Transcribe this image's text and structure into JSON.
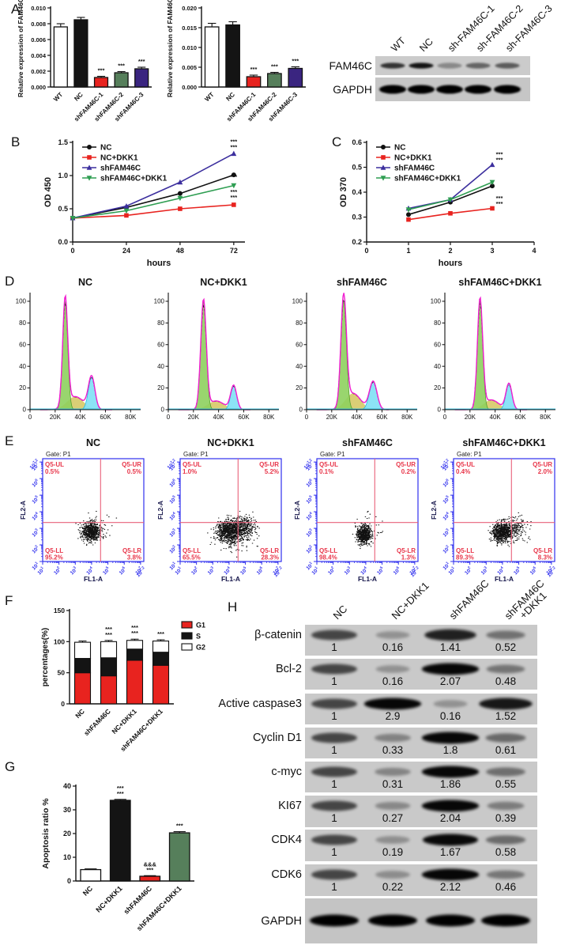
{
  "panel_labels": {
    "A": "A",
    "B": "B",
    "C": "C",
    "D": "D",
    "E": "E",
    "F": "F",
    "G": "G",
    "H": "H"
  },
  "colors": {
    "bar_white": "#ffffff",
    "bar_black": "#141414",
    "bar_red": "#e8231f",
    "bar_green": "#567f5b",
    "bar_purple": "#3a2580",
    "line_black": "#111111",
    "line_red": "#e8231f",
    "line_blue": "#3c2f9e",
    "line_green": "#2f9e52",
    "hist_green": "#8ed05e",
    "hist_yellow": "#d9cb6f",
    "hist_cyan": "#86e2f6",
    "hist_magenta": "#f01fd0",
    "scatter_frame": "#3030ee",
    "scatter_text": "#e8364a",
    "scatter_cross": "#e8607a"
  },
  "chart_data": [
    {
      "id": "A1",
      "type": "bar",
      "ylabel": "Relative expression of FAM46C",
      "categories": [
        "WT",
        "NC",
        "shFAM46C-1",
        "shFAM46C-2",
        "shFAM46C-3"
      ],
      "values": [
        0.0076,
        0.0085,
        0.0012,
        0.0018,
        0.0023
      ],
      "errors": [
        0.0004,
        0.0003,
        0.00015,
        0.00015,
        0.0002
      ],
      "bar_colors": [
        "#ffffff",
        "#141414",
        "#e8231f",
        "#567f5b",
        "#3a2580"
      ],
      "annotations": [
        null,
        null,
        [
          "***"
        ],
        [
          "***"
        ],
        [
          "***"
        ]
      ],
      "ylim": [
        0,
        0.01
      ],
      "ytick_step": 0.002,
      "ytick_decimals": 3
    },
    {
      "id": "A2",
      "type": "bar",
      "ylabel": "Relative expression of FAM46C",
      "categories": [
        "WT",
        "NC",
        "shFAM46C-1",
        "shFAM46C-2",
        "shFAM46C-3"
      ],
      "values": [
        0.0152,
        0.0157,
        0.0026,
        0.0034,
        0.0047
      ],
      "errors": [
        0.0009,
        0.0008,
        0.0004,
        0.0003,
        0.0004
      ],
      "bar_colors": [
        "#ffffff",
        "#141414",
        "#e8231f",
        "#567f5b",
        "#3a2580"
      ],
      "annotations": [
        null,
        null,
        [
          "***"
        ],
        [
          "***"
        ],
        [
          "***"
        ]
      ],
      "ylim": [
        0,
        0.02
      ],
      "ytick_step": 0.005,
      "ytick_decimals": 3
    },
    {
      "id": "B",
      "type": "line",
      "ylabel": "OD 450",
      "xlabel": "hours",
      "x": [
        0,
        24,
        48,
        72
      ],
      "xlim": [
        0,
        77
      ],
      "xticks": [
        0,
        24,
        48,
        72
      ],
      "ylim": [
        0,
        1.5
      ],
      "yticks": [
        0,
        0.5,
        1.0,
        1.5
      ],
      "ytick_decimals": 1,
      "series": [
        {
          "name": "NC",
          "color": "#111111",
          "marker": "circle",
          "values": [
            0.36,
            0.52,
            0.73,
            1.01
          ]
        },
        {
          "name": "NC+DKK1",
          "color": "#e8231f",
          "marker": "square",
          "values": [
            0.36,
            0.4,
            0.5,
            0.56
          ]
        },
        {
          "name": "shFAM46C",
          "color": "#3c2f9e",
          "marker": "triangle-up",
          "values": [
            0.36,
            0.54,
            0.9,
            1.33
          ]
        },
        {
          "name": "shFAM46C+DKK1",
          "color": "#2f9e52",
          "marker": "triangle-down",
          "values": [
            0.36,
            0.47,
            0.66,
            0.85
          ]
        }
      ],
      "annotations": [
        {
          "x": 72,
          "y": 1.48,
          "lines": [
            "***",
            "***"
          ]
        },
        {
          "x": 72,
          "y": 0.955,
          "lines": [
            "***"
          ]
        },
        {
          "x": 72,
          "y": 0.725,
          "lines": [
            "***",
            "***"
          ]
        }
      ]
    },
    {
      "id": "C",
      "type": "line",
      "ylabel": "OD 370",
      "xlabel": "hours",
      "x": [
        1,
        2,
        3
      ],
      "xlim": [
        0,
        4
      ],
      "xticks": [
        0,
        1,
        2,
        3,
        4
      ],
      "ylim": [
        0.2,
        0.6
      ],
      "yticks": [
        0.2,
        0.3,
        0.4,
        0.5,
        0.6
      ],
      "ytick_decimals": 1,
      "series": [
        {
          "name": "NC",
          "color": "#111111",
          "marker": "circle",
          "values": [
            0.31,
            0.36,
            0.425
          ]
        },
        {
          "name": "NC+DKK1",
          "color": "#e8231f",
          "marker": "square",
          "values": [
            0.29,
            0.315,
            0.335
          ]
        },
        {
          "name": "shFAM46C",
          "color": "#3c2f9e",
          "marker": "triangle-up",
          "values": [
            0.335,
            0.37,
            0.51
          ]
        },
        {
          "name": "shFAM46C+DKK1",
          "color": "#2f9e52",
          "marker": "triangle-down",
          "values": [
            0.33,
            0.37,
            0.44
          ]
        }
      ],
      "annotations": [
        {
          "x": 3.17,
          "y": 0.545,
          "lines": [
            "***",
            "***"
          ]
        },
        {
          "x": 3.17,
          "y": 0.368,
          "lines": [
            "***",
            "***"
          ]
        }
      ]
    },
    {
      "id": "D1",
      "type": "area",
      "title": "NC",
      "xticks": [
        0,
        20,
        40,
        60,
        80
      ],
      "xtick_labels": [
        "0",
        "20K",
        "40K",
        "60K",
        "80K"
      ],
      "yticks": [
        0,
        20,
        40,
        60,
        80,
        100
      ],
      "peaks": {
        "g1": [
          28,
          100,
          2.0
        ],
        "s": [
          36,
          12,
          6.5
        ],
        "g2": [
          49,
          30,
          2.6
        ]
      }
    },
    {
      "id": "D2",
      "type": "area",
      "title": "NC+DKK1",
      "xticks": [
        0,
        20,
        40,
        60,
        80
      ],
      "xtick_labels": [
        "0",
        "20K",
        "40K",
        "60K",
        "80K"
      ],
      "yticks": [
        0,
        20,
        40,
        60,
        80,
        100
      ],
      "peaks": {
        "g1": [
          28,
          100,
          2.2
        ],
        "s": [
          38,
          8,
          6.5
        ],
        "g2": [
          52,
          22,
          2.4
        ]
      }
    },
    {
      "id": "D3",
      "type": "area",
      "title": "shFAM46C",
      "xticks": [
        0,
        20,
        40,
        60,
        80
      ],
      "xtick_labels": [
        "0",
        "20K",
        "40K",
        "60K",
        "80K"
      ],
      "yticks": [
        0,
        20,
        40,
        60,
        80,
        100
      ],
      "peaks": {
        "g1": [
          29.5,
          101,
          2.2
        ],
        "s": [
          37,
          15,
          6.0
        ],
        "g2": [
          53,
          26,
          3.0
        ]
      }
    },
    {
      "id": "D4",
      "type": "area",
      "title": "shFAM46C+DKK1",
      "xticks": [
        0,
        20,
        40,
        60,
        80
      ],
      "xtick_labels": [
        "0",
        "20K",
        "40K",
        "60K",
        "80K"
      ],
      "yticks": [
        0,
        20,
        40,
        60,
        80,
        100
      ],
      "peaks": {
        "g1": [
          28,
          101,
          2.1
        ],
        "s": [
          37,
          9,
          6.0
        ],
        "g2": [
          51,
          24,
          2.4
        ]
      }
    },
    {
      "id": "E1",
      "type": "scatter",
      "title": "NC",
      "gate": "Gate: P1",
      "xlabel": "FL1-A",
      "ylabel": "FL2-A",
      "log_ticks": [
        1,
        2,
        3,
        4,
        5,
        6,
        7,
        7.2
      ],
      "quadrants": {
        "UL": {
          "label": "Q5-UL",
          "pct": "0.5%"
        },
        "UR": {
          "label": "Q5-UR",
          "pct": "0.5%"
        },
        "LL": {
          "label": "Q5-LL",
          "pct": "95.2%"
        },
        "LR": {
          "label": "Q5-LR",
          "pct": "3.8%"
        }
      },
      "clusters": [
        [
          3.95,
          2.78,
          0.27,
          0.27,
          700
        ],
        [
          4.2,
          3.05,
          0.55,
          0.5,
          60
        ]
      ]
    },
    {
      "id": "E2",
      "type": "scatter",
      "title": "NC+DKK1",
      "gate": "Gate: P1",
      "xlabel": "FL1-A",
      "ylabel": "FL2-A",
      "log_ticks": [
        1,
        2,
        3,
        4,
        5,
        6,
        7,
        7.2
      ],
      "quadrants": {
        "UL": {
          "label": "Q5-UL",
          "pct": "1.0%"
        },
        "UR": {
          "label": "Q5-UR",
          "pct": "5.2%"
        },
        "LL": {
          "label": "Q5-LL",
          "pct": "65.5%"
        },
        "LR": {
          "label": "Q5-LR",
          "pct": "28.3%"
        }
      },
      "clusters": [
        [
          3.95,
          2.85,
          0.36,
          0.32,
          800
        ],
        [
          4.85,
          3.05,
          0.38,
          0.33,
          420
        ],
        [
          4.3,
          2.35,
          0.6,
          0.4,
          120
        ]
      ]
    },
    {
      "id": "E3",
      "type": "scatter",
      "title": "shFAM46C",
      "gate": "Gate: P1",
      "xlabel": "FL1-A",
      "ylabel": "FL2-A",
      "log_ticks": [
        1,
        2,
        3,
        4,
        5,
        6,
        7,
        7.2
      ],
      "quadrants": {
        "UL": {
          "label": "Q5-UL",
          "pct": "0.1%"
        },
        "UR": {
          "label": "Q5-UR",
          "pct": "0.2%"
        },
        "LL": {
          "label": "Q5-LL",
          "pct": "98.4%"
        },
        "LR": {
          "label": "Q5-LR",
          "pct": "1.3%"
        }
      },
      "clusters": [
        [
          3.9,
          2.62,
          0.22,
          0.27,
          650
        ],
        [
          4.15,
          2.95,
          0.45,
          0.45,
          40
        ]
      ]
    },
    {
      "id": "E4",
      "type": "scatter",
      "title": "shFAM46C+DKK1",
      "gate": "Gate: P1",
      "xlabel": "FL1-A",
      "ylabel": "FL2-A",
      "log_ticks": [
        1,
        2,
        3,
        4,
        5,
        6,
        7,
        7.2
      ],
      "quadrants": {
        "UL": {
          "label": "Q5-UL",
          "pct": "0.4%"
        },
        "UR": {
          "label": "Q5-UR",
          "pct": "2.0%"
        },
        "LL": {
          "label": "Q5-LL",
          "pct": "89.3%"
        },
        "LR": {
          "label": "Q5-LR",
          "pct": "8.3%"
        }
      },
      "clusters": [
        [
          3.95,
          2.75,
          0.3,
          0.3,
          700
        ],
        [
          4.75,
          2.95,
          0.42,
          0.38,
          230
        ]
      ]
    },
    {
      "id": "F",
      "type": "stacked_bar",
      "ylabel": "percentages(%)",
      "ylim": [
        0,
        150
      ],
      "yticks": [
        0,
        50,
        100,
        150
      ],
      "categories": [
        "NC",
        "shFAM46C",
        "NC+DKK1",
        "shFAM46C+DKK1"
      ],
      "series": [
        {
          "name": "G1",
          "color": "#e8231f",
          "values": [
            50,
            45,
            70,
            62
          ]
        },
        {
          "name": "S",
          "color": "#141414",
          "values": [
            23,
            29,
            18,
            21
          ]
        },
        {
          "name": "G2",
          "color": "#ffffff",
          "values": [
            26,
            26,
            14,
            18
          ]
        }
      ],
      "annotations": [
        null,
        [
          "***",
          "***"
        ],
        [
          "***",
          "***"
        ],
        [
          "***"
        ]
      ]
    },
    {
      "id": "G",
      "type": "bar",
      "ylabel": "Apoptosis ratio %",
      "categories": [
        "NC",
        "NC+DKK1",
        "shFAM46C",
        "shFAM46C+DKK1"
      ],
      "values": [
        4.8,
        34,
        2,
        20.3
      ],
      "errors": [
        0.3,
        0.4,
        0.25,
        0.5
      ],
      "bar_colors": [
        "#ffffff",
        "#141414",
        "#e8231f",
        "#567f5b"
      ],
      "annotations": [
        null,
        [
          "***",
          "***"
        ],
        [
          "&&&",
          "***"
        ],
        [
          "***"
        ]
      ],
      "ylim": [
        0,
        40
      ],
      "ytick_step": 10,
      "ytick_decimals": 0
    }
  ],
  "blots": {
    "A": {
      "lanes": [
        "WT",
        "NC",
        "sh-FAM46C-1",
        "sh-FAM46C-2",
        "sh-FAM46C-3"
      ],
      "rows": [
        {
          "label": "FAM46C",
          "bands": [
            0.75,
            0.9,
            0.32,
            0.5,
            0.55
          ]
        },
        {
          "label": "GAPDH",
          "bands": [
            1,
            1,
            1,
            1,
            1
          ]
        }
      ]
    },
    "H": {
      "lanes": [
        [
          "NC"
        ],
        [
          "NC+DKK1"
        ],
        [
          "shFAM46C"
        ],
        [
          "shFAM46C",
          "+DKK1"
        ]
      ],
      "rows": [
        {
          "label": "β-catenin",
          "values": [
            "1",
            "0.16",
            "1.41",
            "0.52"
          ]
        },
        {
          "label": "Bcl-2",
          "values": [
            "1",
            "0.16",
            "2.07",
            "0.48"
          ]
        },
        {
          "label": "Active caspase3",
          "values": [
            "1",
            "2.9",
            "0.16",
            "1.52"
          ]
        },
        {
          "label": "Cyclin D1",
          "values": [
            "1",
            "0.33",
            "1.8",
            "0.61"
          ]
        },
        {
          "label": "c-myc",
          "values": [
            "1",
            "0.31",
            "1.86",
            "0.55"
          ]
        },
        {
          "label": "KI67",
          "values": [
            "1",
            "0.27",
            "2.04",
            "0.39"
          ]
        },
        {
          "label": "CDK4",
          "values": [
            "1",
            "0.19",
            "1.67",
            "0.58"
          ]
        },
        {
          "label": "CDK6",
          "values": [
            "1",
            "0.22",
            "2.12",
            "0.46"
          ]
        },
        {
          "label": "GAPDH",
          "values": null
        }
      ]
    }
  }
}
